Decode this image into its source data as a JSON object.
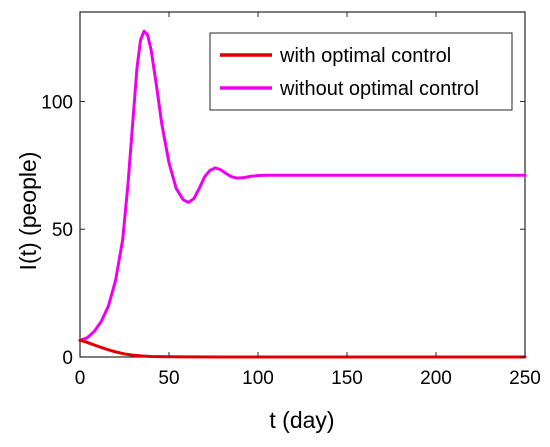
{
  "chart_data": {
    "type": "line",
    "xlabel": "t (day)",
    "ylabel": "I(t) (people)",
    "xlim": [
      0,
      250
    ],
    "ylim": [
      0,
      135
    ],
    "xticks": [
      0,
      50,
      100,
      150,
      200,
      250
    ],
    "yticks": [
      0,
      50,
      100
    ],
    "grid": false,
    "legend_position": "top-right",
    "series": [
      {
        "name": "with optimal control",
        "color": "#e00000",
        "x": [
          0,
          3,
          6,
          10,
          15,
          20,
          25,
          30,
          35,
          40,
          50,
          60,
          80,
          100,
          150,
          200,
          250
        ],
        "y": [
          6.5,
          6.0,
          5.2,
          4.2,
          3.0,
          2.0,
          1.2,
          0.7,
          0.4,
          0.2,
          0.1,
          0.05,
          0,
          0,
          0,
          0,
          0
        ]
      },
      {
        "name": "without optimal control",
        "color": "#ee00ee",
        "x": [
          0,
          4,
          8,
          12,
          16,
          20,
          24,
          27,
          30,
          32,
          34,
          36,
          38,
          40,
          43,
          46,
          50,
          54,
          58,
          61,
          64,
          67,
          70,
          73,
          76,
          79,
          82,
          85,
          88,
          92,
          96,
          100,
          105,
          110,
          120,
          140,
          160,
          180,
          200,
          220,
          250
        ],
        "y": [
          6.5,
          7.5,
          10,
          14,
          20,
          30,
          46,
          68,
          95,
          113,
          124,
          127.5,
          126,
          120,
          106,
          91,
          76,
          66,
          61.5,
          60.5,
          62,
          66,
          70.5,
          73,
          74,
          73.3,
          71.8,
          70.6,
          70,
          70.2,
          70.7,
          71,
          71.1,
          71.1,
          71.1,
          71.1,
          71.1,
          71.1,
          71.1,
          71.1,
          71.1
        ]
      }
    ]
  }
}
